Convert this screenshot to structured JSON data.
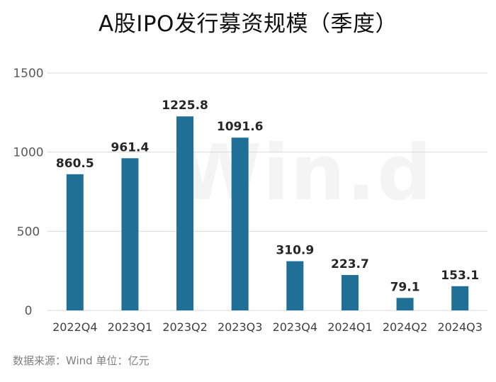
{
  "title": "A股IPO发行募资规模（季度）",
  "watermark": "Win.d",
  "footer": {
    "source": "数据来源：Wind 单位：亿元"
  },
  "colors": {
    "bar": "#1f6f97",
    "grid": "#d9d9d9"
  },
  "chart_data": {
    "type": "bar",
    "title": "A股IPO发行募资规模（季度）",
    "categories": [
      "2022Q4",
      "2023Q1",
      "2023Q2",
      "2023Q3",
      "2023Q4",
      "2024Q1",
      "2024Q2",
      "2024Q3"
    ],
    "values": [
      860.5,
      961.4,
      1225.8,
      1091.6,
      310.9,
      223.7,
      79.1,
      153.1
    ],
    "data_labels": [
      "860.5",
      "961.4",
      "1225.8",
      "1091.6",
      "310.9",
      "223.7",
      "79.1",
      "153.1"
    ],
    "yticks": [
      0,
      500,
      1000,
      1500
    ],
    "ylim": [
      0,
      1500
    ],
    "xlabel": "",
    "ylabel": "",
    "grid": true,
    "legend": "none"
  }
}
